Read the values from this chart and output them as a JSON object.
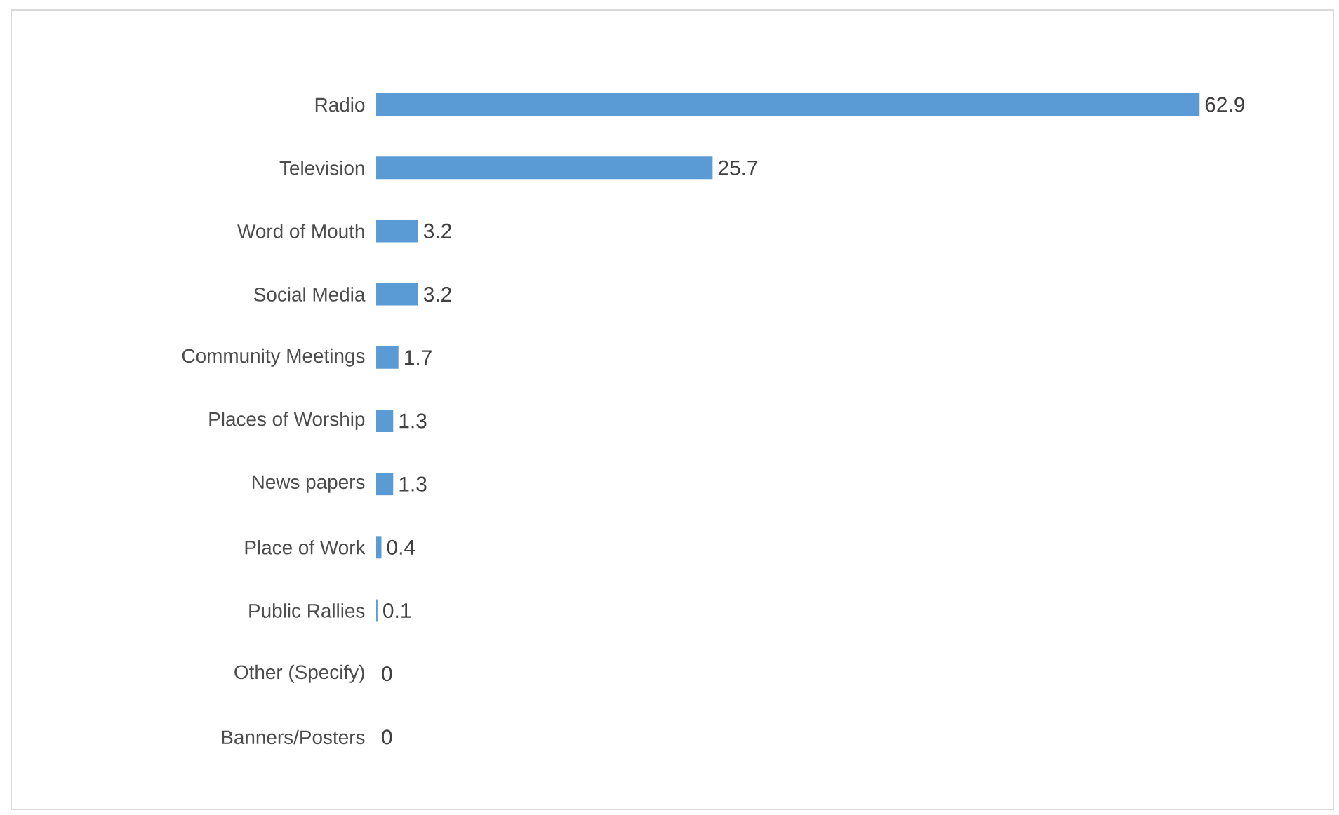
{
  "chart_data": {
    "type": "bar",
    "orientation": "horizontal",
    "categories": [
      "Radio",
      "Television",
      "Word of Mouth",
      "Social Media",
      "Community Meetings",
      "Places of Worship",
      "News papers",
      "Place of Work",
      "Public Rallies",
      "Other (Specify)",
      "Banners/Posters"
    ],
    "values": [
      62.9,
      25.7,
      3.2,
      3.2,
      1.7,
      1.3,
      1.3,
      0.4,
      0.1,
      0,
      0
    ],
    "color": "#5b9bd5",
    "data_labels": true
  }
}
